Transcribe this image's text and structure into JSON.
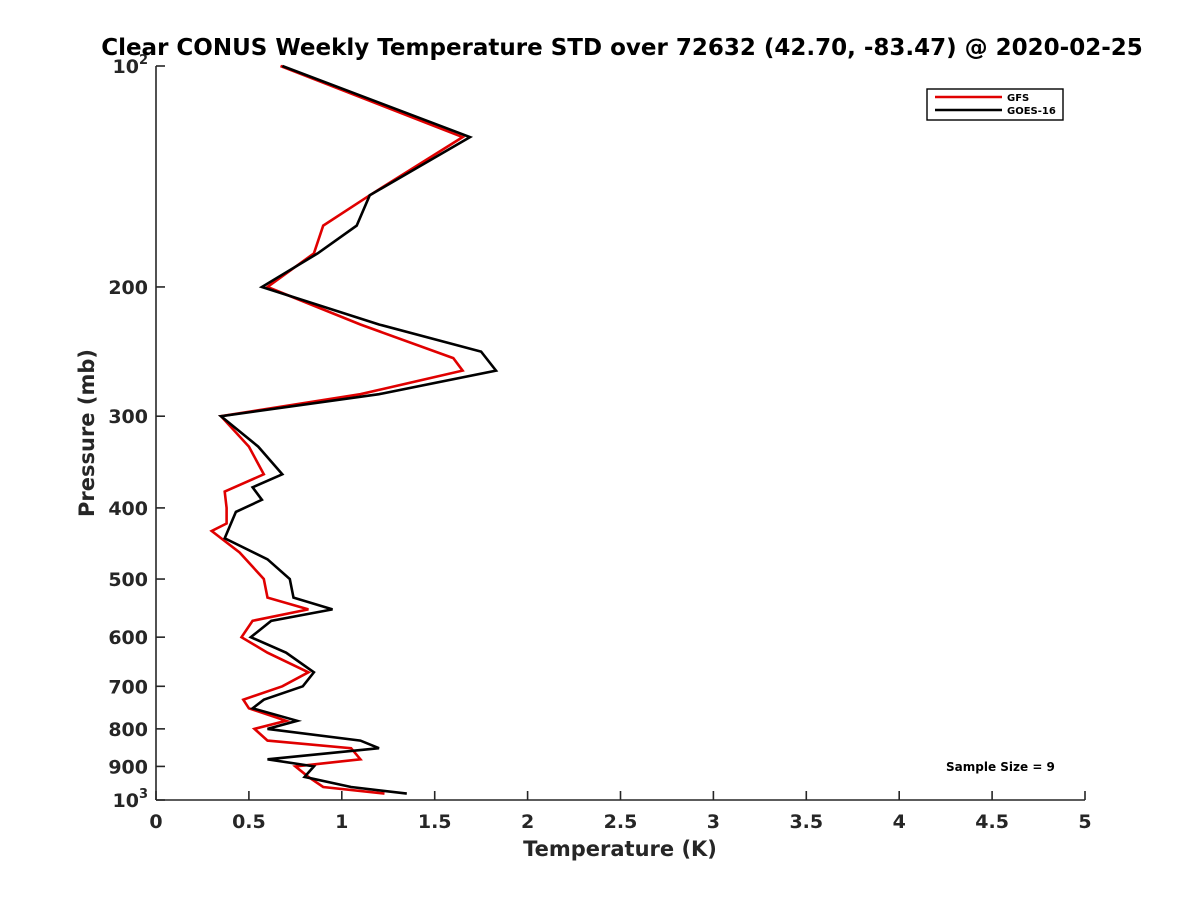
{
  "chart_data": {
    "type": "line",
    "title": "Clear CONUS Weekly Temperature STD over 72632 (42.70, -83.47) @ 2020-02-25",
    "xlabel": "Temperature (K)",
    "ylabel": "Pressure (mb)",
    "xlim": [
      0,
      5
    ],
    "ylim": [
      100,
      1000
    ],
    "y_scale": "log",
    "y_reversed": true,
    "grid": false,
    "legend_position": "top-right",
    "x_ticks": [
      0,
      0.5,
      1,
      1.5,
      2,
      2.5,
      3,
      3.5,
      4,
      4.5,
      5
    ],
    "x_tick_labels": [
      "0",
      "0.5",
      "1",
      "1.5",
      "2",
      "2.5",
      "3",
      "3.5",
      "4",
      "4.5",
      "5"
    ],
    "y_ticks": [
      {
        "value": 100,
        "base": "10",
        "exp": "2"
      },
      {
        "value": 200,
        "label": "200"
      },
      {
        "value": 300,
        "label": "300"
      },
      {
        "value": 400,
        "label": "400"
      },
      {
        "value": 500,
        "label": "500"
      },
      {
        "value": 600,
        "label": "600"
      },
      {
        "value": 700,
        "label": "700"
      },
      {
        "value": 800,
        "label": "800"
      },
      {
        "value": 900,
        "label": "900"
      },
      {
        "value": 1000,
        "base": "10",
        "exp": "3"
      }
    ],
    "annotation": "Sample Size = 9",
    "series": [
      {
        "name": "GFS",
        "color": "#e00000",
        "pressure": [
          100,
          125,
          150,
          165,
          180,
          200,
          225,
          250,
          260,
          280,
          300,
          330,
          360,
          380,
          400,
          420,
          430,
          460,
          500,
          530,
          550,
          570,
          600,
          630,
          670,
          700,
          730,
          750,
          780,
          800,
          830,
          850,
          880,
          900,
          930,
          960,
          980
        ],
        "value": [
          0.67,
          1.65,
          1.15,
          0.9,
          0.85,
          0.6,
          1.1,
          1.6,
          1.65,
          1.1,
          0.35,
          0.5,
          0.58,
          0.37,
          0.38,
          0.38,
          0.3,
          0.45,
          0.58,
          0.6,
          0.82,
          0.52,
          0.46,
          0.6,
          0.82,
          0.68,
          0.47,
          0.5,
          0.7,
          0.53,
          0.6,
          1.05,
          1.1,
          0.75,
          0.82,
          0.9,
          1.23
        ]
      },
      {
        "name": "GOES-16",
        "color": "#000000",
        "pressure": [
          100,
          125,
          150,
          165,
          180,
          200,
          225,
          245,
          260,
          280,
          300,
          330,
          360,
          375,
          390,
          405,
          440,
          470,
          500,
          530,
          550,
          570,
          600,
          630,
          670,
          700,
          730,
          750,
          780,
          800,
          830,
          850,
          880,
          900,
          930,
          960,
          980
        ],
        "value": [
          0.68,
          1.69,
          1.15,
          1.08,
          0.87,
          0.57,
          1.2,
          1.75,
          1.83,
          1.2,
          0.35,
          0.55,
          0.68,
          0.52,
          0.57,
          0.43,
          0.37,
          0.6,
          0.72,
          0.74,
          0.95,
          0.62,
          0.51,
          0.7,
          0.85,
          0.79,
          0.58,
          0.52,
          0.76,
          0.6,
          1.1,
          1.2,
          0.6,
          0.85,
          0.8,
          1.05,
          1.35
        ]
      }
    ]
  }
}
